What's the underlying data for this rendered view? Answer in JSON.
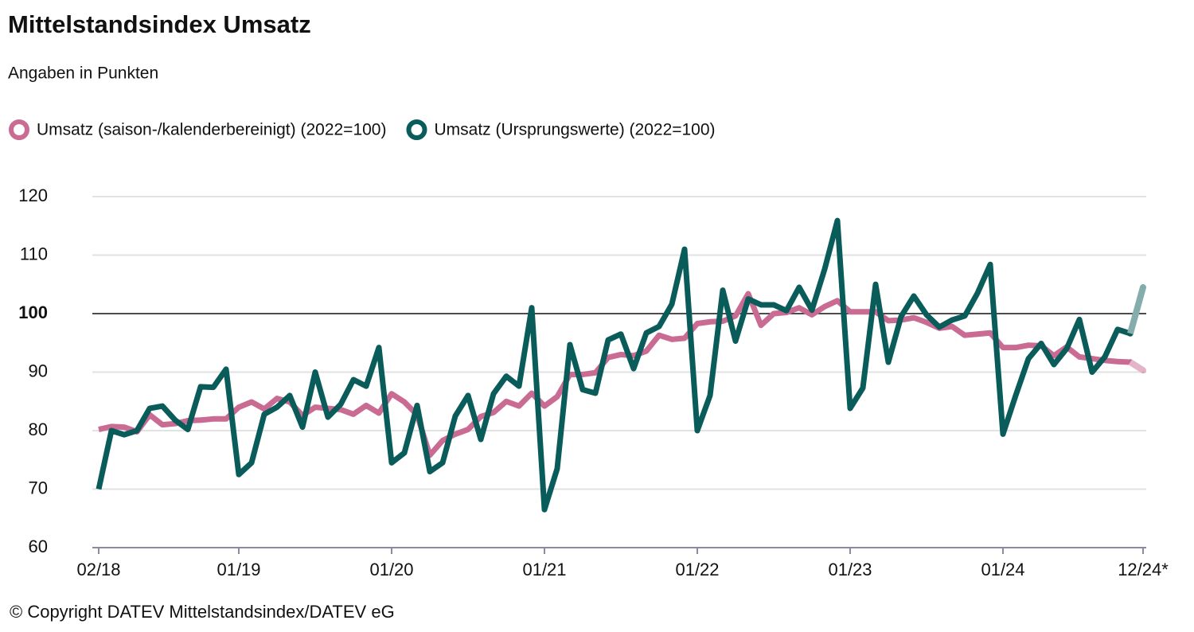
{
  "chart_data": {
    "type": "line",
    "title": "Mittelstandsindex Umsatz",
    "subtitle": "Angaben in Punkten",
    "source": "© Copyright DATEV Mittelstandsindex/DATEV eG",
    "legend_position": "top-left",
    "grid": true,
    "reference_line": 100,
    "last_segment_faded": true,
    "categories": [
      "02/18",
      null,
      null,
      null,
      null,
      null,
      null,
      null,
      null,
      null,
      null,
      "01/19",
      null,
      null,
      null,
      null,
      null,
      null,
      null,
      null,
      null,
      null,
      null,
      "01/20",
      null,
      null,
      null,
      null,
      null,
      null,
      null,
      null,
      null,
      null,
      null,
      "01/21",
      null,
      null,
      null,
      null,
      null,
      null,
      null,
      null,
      null,
      null,
      null,
      "01/22",
      null,
      null,
      null,
      null,
      null,
      null,
      null,
      null,
      null,
      null,
      null,
      "01/23",
      null,
      null,
      null,
      null,
      null,
      null,
      null,
      null,
      null,
      null,
      null,
      "01/24",
      null,
      null,
      null,
      null,
      null,
      null,
      null,
      null,
      null,
      null,
      "12/24*"
    ],
    "series": [
      {
        "name": "Umsatz (saison-/kalenderbereinigt) (2022=100)",
        "color": "#c96b93",
        "values": [
          80.2,
          80.7,
          80.6,
          79.8,
          82.7,
          81,
          81.2,
          81.7,
          81.8,
          82,
          82,
          84,
          84.9,
          83.7,
          85.5,
          84.9,
          82.6,
          84,
          83.8,
          83.6,
          82.8,
          84.3,
          83,
          86.3,
          84.9,
          82.7,
          75.8,
          78.3,
          79.4,
          80.2,
          82.4,
          83.1,
          85,
          84.2,
          86.4,
          84.2,
          85.8,
          89.6,
          89.6,
          89.9,
          92.5,
          93,
          92.8,
          93.6,
          96.3,
          95.6,
          95.8,
          98.3,
          98.6,
          98.7,
          99.6,
          103.4,
          98,
          100,
          100.2,
          101,
          99.8,
          101.2,
          102.2,
          100.3,
          100.3,
          100.3,
          98.8,
          98.9,
          99.3,
          98.5,
          97.5,
          97.8,
          96.3,
          96.5,
          96.7,
          94.2,
          94.2,
          94.6,
          94.5,
          92.8,
          94.3,
          92.6,
          92.3,
          92,
          91.8,
          91.7,
          90.3
        ]
      },
      {
        "name": "Umsatz (Ursprungswerte) (2022=100)",
        "color": "#0a5c5a",
        "values": [
          70,
          80,
          79.3,
          80,
          83.8,
          84.2,
          81.8,
          80.2,
          87.5,
          87.4,
          90.5,
          72.5,
          74.5,
          82.8,
          84,
          86,
          80.6,
          90,
          82.3,
          84.5,
          88.7,
          87.6,
          94.2,
          74.5,
          76.2,
          84.3,
          73,
          74.5,
          82.5,
          86,
          78.5,
          86.3,
          89.3,
          87.6,
          101,
          66.5,
          73.5,
          94.7,
          87,
          86.4,
          95.5,
          96.5,
          90.6,
          96.7,
          97.8,
          101.6,
          111,
          80,
          86,
          104,
          95.3,
          102.5,
          101.5,
          101.5,
          100.5,
          104.5,
          100.6,
          107.6,
          115.9,
          83.8,
          87.3,
          105,
          91.7,
          99.5,
          103,
          99.8,
          97.7,
          98.9,
          99.6,
          103.5,
          108.4,
          79.4,
          86,
          92.3,
          94.9,
          91.3,
          94,
          99,
          90,
          92.6,
          97.3,
          96.6,
          104.5
        ]
      }
    ],
    "ylim": [
      60,
      120
    ],
    "yticks": [
      60,
      70,
      80,
      90,
      100,
      110,
      120
    ]
  }
}
